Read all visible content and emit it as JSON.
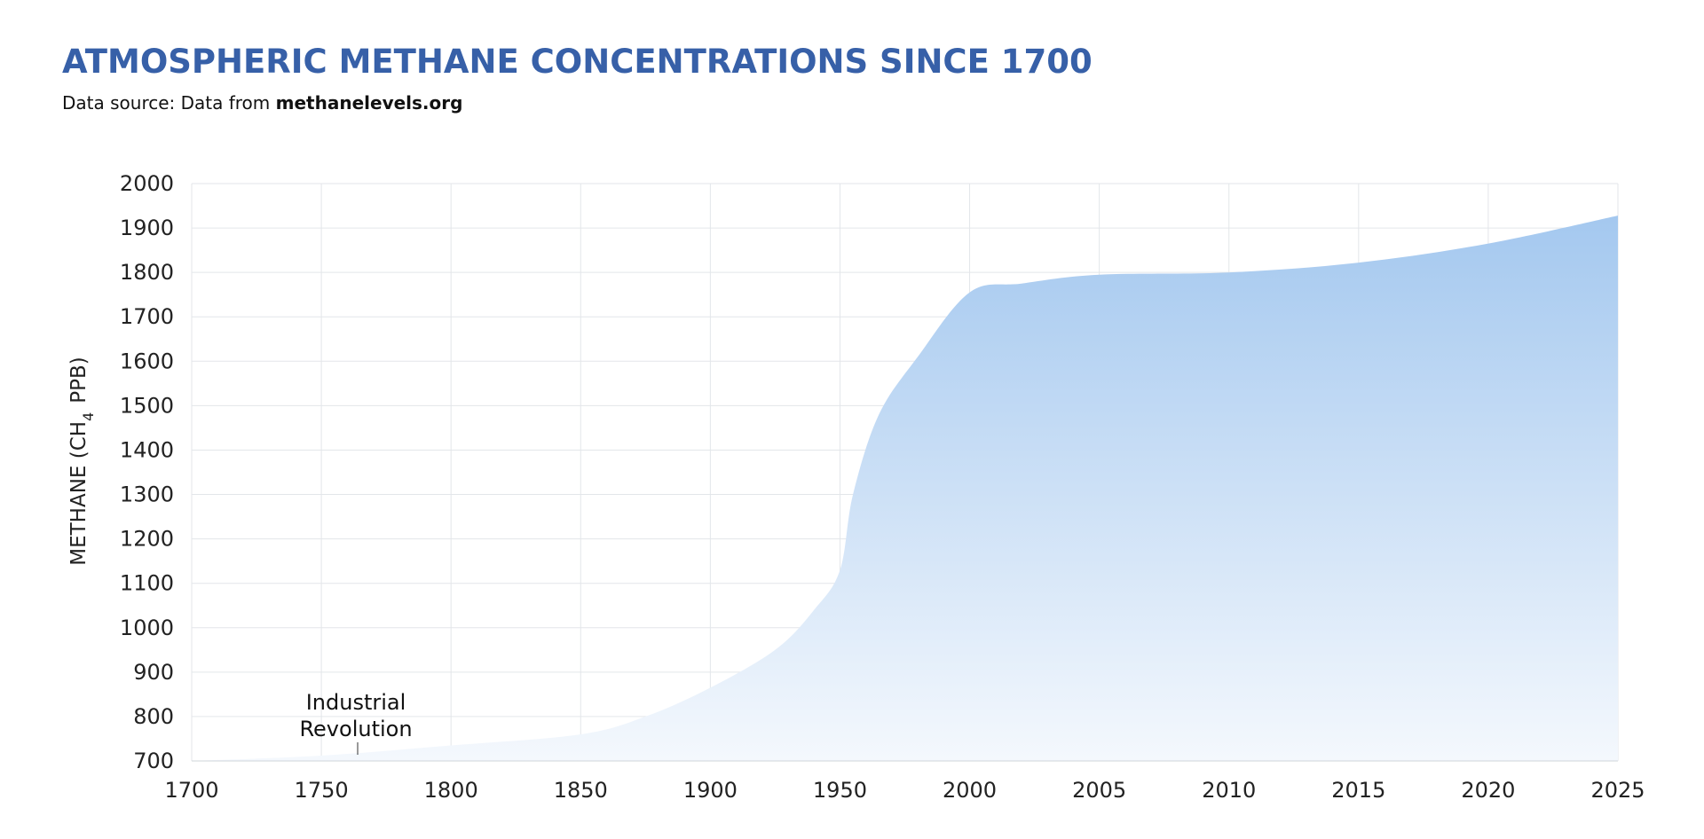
{
  "header": {
    "title": "ATMOSPHERIC METHANE CONCENTRATIONS SINCE 1700",
    "source_prefix": "Data source: Data from ",
    "source_name": "methanelevels.org"
  },
  "colors": {
    "title": "#3760a8",
    "area_top": "#a4c8ef",
    "area_bottom": "#f4f8fd",
    "grid": "#e3e6ea"
  },
  "chart_data": {
    "type": "area",
    "title": "ATMOSPHERIC METHANE CONCENTRATIONS SINCE 1700",
    "ylabel_main": "METHANE (CH",
    "ylabel_sub": "4",
    "ylabel_end": "PPB)",
    "ylim": [
      700,
      2000
    ],
    "yticks": [
      "700",
      "800",
      "900",
      "1000",
      "1100",
      "1200",
      "1300",
      "1400",
      "1500",
      "1600",
      "1700",
      "1800",
      "1900",
      "2000"
    ],
    "xticks": [
      "1700",
      "1750",
      "1800",
      "1850",
      "1900",
      "1950",
      "2000",
      "2005",
      "2010",
      "2015",
      "2020",
      "2025"
    ],
    "grid": true,
    "series": [
      {
        "values": [
          {
            "x": "1700",
            "y": 700
          },
          {
            "x": "1750",
            "y": 712
          },
          {
            "x": "1800",
            "y": 735
          },
          {
            "x": "1850",
            "y": 760
          },
          {
            "x": "1875",
            "y": 800
          },
          {
            "x": "1900",
            "y": 865
          },
          {
            "x": "1925",
            "y": 950
          },
          {
            "x": "1940",
            "y": 1040
          },
          {
            "x": "1950",
            "y": 1130
          },
          {
            "x": "1955",
            "y": 1300
          },
          {
            "x": "1965",
            "y": 1480
          },
          {
            "x": "1980",
            "y": 1610
          },
          {
            "x": "2000",
            "y": 1755
          },
          {
            "x": "2002",
            "y": 1775
          },
          {
            "x": "2005",
            "y": 1795
          },
          {
            "x": "2010",
            "y": 1800
          },
          {
            "x": "2015",
            "y": 1822
          },
          {
            "x": "2020",
            "y": 1865
          },
          {
            "x": "2025",
            "y": 1928
          }
        ]
      }
    ],
    "annotations": [
      {
        "line1": "Industrial",
        "line2": "Revolution",
        "x": "1764"
      }
    ]
  }
}
